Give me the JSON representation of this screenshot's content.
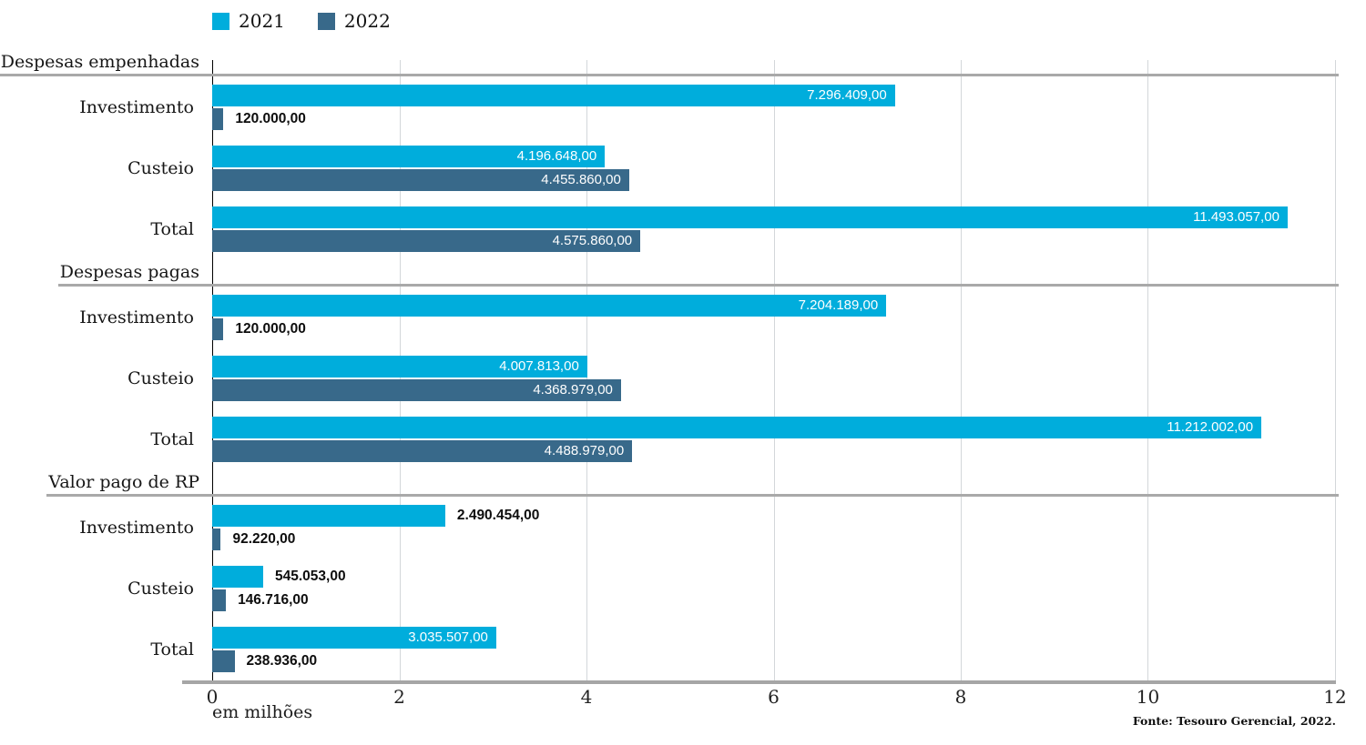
{
  "legend": {
    "items": [
      {
        "label": "2021",
        "color": "#00addc"
      },
      {
        "label": "2022",
        "color": "#38698a"
      }
    ]
  },
  "x_axis": {
    "ticks": [
      "0",
      "2",
      "4",
      "6",
      "8",
      "10",
      "12"
    ],
    "unit_label": "em milhões"
  },
  "footer": {
    "source": "Fonte: Tesouro Gerencial, 2022."
  },
  "chart_data": {
    "type": "bar",
    "orientation": "horizontal",
    "title": "",
    "xlabel": "em milhões",
    "xlim": [
      0,
      12
    ],
    "grid": true,
    "legend_position": "top",
    "series_names": [
      "2021",
      "2022"
    ],
    "colors": {
      "2021": "#00addc",
      "2022": "#38698a"
    },
    "sections": [
      {
        "title": "Despesas empenhadas",
        "rows": [
          {
            "category": "Investimento",
            "bars": [
              {
                "series": "2021",
                "value_millions": 7.296409,
                "label": "7.296.409,00"
              },
              {
                "series": "2022",
                "value_millions": 0.12,
                "label": "120.000,00"
              }
            ]
          },
          {
            "category": "Custeio",
            "bars": [
              {
                "series": "2021",
                "value_millions": 4.196648,
                "label": "4.196.648,00"
              },
              {
                "series": "2022",
                "value_millions": 4.45586,
                "label": "4.455.860,00"
              }
            ]
          },
          {
            "category": "Total",
            "bars": [
              {
                "series": "2021",
                "value_millions": 11.493057,
                "label": "11.493.057,00"
              },
              {
                "series": "2022",
                "value_millions": 4.57586,
                "label": "4.575.860,00"
              }
            ]
          }
        ]
      },
      {
        "title": "Despesas pagas",
        "rows": [
          {
            "category": "Investimento",
            "bars": [
              {
                "series": "2021",
                "value_millions": 7.204189,
                "label": "7.204.189,00"
              },
              {
                "series": "2022",
                "value_millions": 0.12,
                "label": "120.000,00"
              }
            ]
          },
          {
            "category": "Custeio",
            "bars": [
              {
                "series": "2021",
                "value_millions": 4.007813,
                "label": "4.007.813,00"
              },
              {
                "series": "2022",
                "value_millions": 4.368979,
                "label": "4.368.979,00"
              }
            ]
          },
          {
            "category": "Total",
            "bars": [
              {
                "series": "2021",
                "value_millions": 11.212002,
                "label": "11.212.002,00"
              },
              {
                "series": "2022",
                "value_millions": 4.488979,
                "label": "4.488.979,00"
              }
            ]
          }
        ]
      },
      {
        "title": "Valor pago de RP",
        "rows": [
          {
            "category": "Investimento",
            "bars": [
              {
                "series": "2021",
                "value_millions": 2.490454,
                "label": "2.490.454,00"
              },
              {
                "series": "2022",
                "value_millions": 0.09222,
                "label": "92.220,00"
              }
            ]
          },
          {
            "category": "Custeio",
            "bars": [
              {
                "series": "2021",
                "value_millions": 0.545053,
                "label": "545.053,00"
              },
              {
                "series": "2022",
                "value_millions": 0.146716,
                "label": "146.716,00"
              }
            ]
          },
          {
            "category": "Total",
            "bars": [
              {
                "series": "2021",
                "value_millions": 3.035507,
                "label": "3.035.507,00"
              },
              {
                "series": "2022",
                "value_millions": 0.238936,
                "label": "238.936,00"
              }
            ]
          }
        ]
      }
    ]
  }
}
